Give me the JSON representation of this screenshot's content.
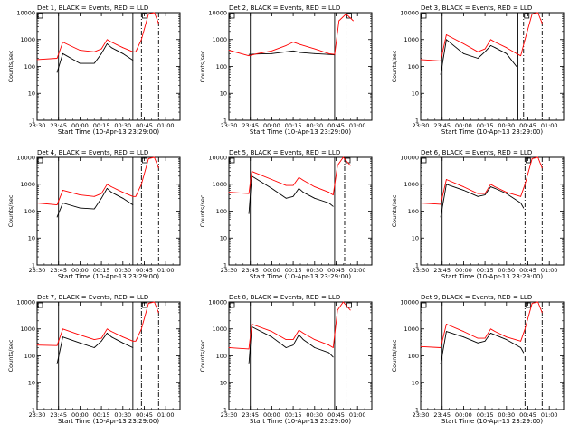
{
  "chart_data": [
    {
      "type": "line",
      "title": "Det 1, BLACK = Events, RED = LLD",
      "xlabel": "Start Time (10-Apr-13 23:29:00)",
      "ylabel": "Counts/sec",
      "yscale": "log",
      "ylim": [
        1,
        10000
      ],
      "xlim": [
        "23:30",
        "01:10"
      ],
      "xticks": [
        "23:30",
        "23:45",
        "00:00",
        "00:15",
        "00:30",
        "00:45",
        "01:00"
      ],
      "yticks": [
        "1",
        "10",
        "100",
        "1000",
        "10000"
      ],
      "vlines": {
        "solid": [
          "23:45",
          "00:37"
        ],
        "dashdot": [
          "00:43",
          "00:55"
        ]
      },
      "series": [
        {
          "color": "#000000",
          "x": [
            "23:44",
            "23:48",
            "00:00",
            "00:10",
            "00:15",
            "00:19",
            "00:22",
            "00:30",
            "00:37"
          ],
          "y": [
            60,
            300,
            130,
            130,
            300,
            700,
            500,
            300,
            170
          ]
        },
        {
          "color": "#ff0000",
          "x": [
            "23:30",
            "23:44",
            "23:48",
            "00:00",
            "00:10",
            "00:15",
            "00:19",
            "00:22",
            "00:30",
            "00:37",
            "00:39",
            "00:43",
            "00:48",
            "00:52",
            "00:55"
          ],
          "y": [
            180,
            200,
            800,
            400,
            350,
            450,
            1000,
            800,
            500,
            350,
            350,
            1000,
            9000,
            10000,
            4000
          ]
        }
      ]
    },
    {
      "type": "line",
      "title": "Det 2, BLACK = Events, RED = LLD",
      "xlabel": "Start Time (10-Apr-13 23:29:00)",
      "ylabel": "Counts/sec",
      "yscale": "log",
      "ylim": [
        1,
        10000
      ],
      "xlim": [
        "23:30",
        "01:10"
      ],
      "xticks": [
        "23:30",
        "23:45",
        "00:00",
        "00:15",
        "00:30",
        "00:45",
        "01:00"
      ],
      "yticks": [
        "1",
        "10",
        "100",
        "1000",
        "10000"
      ],
      "vlines": {
        "solid": [
          "23:45",
          "00:44"
        ],
        "dashdot": [
          "00:52"
        ]
      },
      "series": [
        {
          "color": "#000000",
          "x": [
            "23:44",
            "23:50",
            "00:00",
            "00:10",
            "00:15",
            "00:20",
            "00:30",
            "00:40",
            "00:44"
          ],
          "y": [
            280,
            290,
            300,
            350,
            380,
            330,
            300,
            280,
            270
          ]
        },
        {
          "color": "#ff0000",
          "x": [
            "23:30",
            "23:44",
            "23:50",
            "00:00",
            "00:10",
            "00:15",
            "00:20",
            "00:30",
            "00:40",
            "00:44",
            "00:47",
            "00:52",
            "00:57"
          ],
          "y": [
            400,
            250,
            300,
            380,
            600,
            800,
            650,
            450,
            300,
            280,
            5000,
            9000,
            5000
          ]
        }
      ]
    },
    {
      "type": "line",
      "title": "Det 3, BLACK = Events, RED = LLD",
      "xlabel": "Start Time (10-Apr-13 23:29:00)",
      "ylabel": "Counts/sec",
      "yscale": "log",
      "ylim": [
        1,
        10000
      ],
      "xlim": [
        "23:30",
        "01:10"
      ],
      "xticks": [
        "23:30",
        "23:45",
        "00:00",
        "00:15",
        "00:30",
        "00:45",
        "01:00"
      ],
      "yticks": [
        "1",
        "10",
        "100",
        "1000",
        "10000"
      ],
      "vlines": {
        "solid": [
          "23:45",
          "00:38"
        ],
        "dashdot": [
          "00:42",
          "00:55"
        ]
      },
      "series": [
        {
          "color": "#000000",
          "x": [
            "23:44",
            "23:48",
            "00:00",
            "00:10",
            "00:15",
            "00:19",
            "00:22",
            "00:30",
            "00:37"
          ],
          "y": [
            50,
            1000,
            300,
            200,
            350,
            600,
            500,
            300,
            100
          ]
        },
        {
          "color": "#ff0000",
          "x": [
            "23:30",
            "23:44",
            "23:48",
            "00:00",
            "00:10",
            "00:15",
            "00:19",
            "00:22",
            "00:30",
            "00:37",
            "00:40",
            "00:43",
            "00:48",
            "00:52",
            "00:55"
          ],
          "y": [
            180,
            160,
            1500,
            700,
            350,
            450,
            1000,
            800,
            500,
            300,
            250,
            1000,
            9000,
            10000,
            4000
          ]
        }
      ]
    },
    {
      "type": "line",
      "title": "Det 4, BLACK = Events, RED = LLD",
      "xlabel": "Start Time (10-Apr-13 23:29:00)",
      "ylabel": "Counts/sec",
      "yscale": "log",
      "ylim": [
        1,
        10000
      ],
      "xlim": [
        "23:30",
        "01:10"
      ],
      "xticks": [
        "23:30",
        "23:45",
        "00:00",
        "00:15",
        "00:30",
        "00:45",
        "01:00"
      ],
      "yticks": [
        "1",
        "10",
        "100",
        "1000",
        "10000"
      ],
      "vlines": {
        "solid": [
          "23:45",
          "00:37"
        ],
        "dashdot": [
          "00:43",
          "00:55"
        ]
      },
      "series": [
        {
          "color": "#000000",
          "x": [
            "23:44",
            "23:48",
            "00:00",
            "00:10",
            "00:15",
            "00:19",
            "00:22",
            "00:30",
            "00:37"
          ],
          "y": [
            60,
            200,
            130,
            120,
            300,
            700,
            500,
            300,
            170
          ]
        },
        {
          "color": "#ff0000",
          "x": [
            "23:30",
            "23:44",
            "23:48",
            "00:00",
            "00:10",
            "00:15",
            "00:19",
            "00:22",
            "00:30",
            "00:37",
            "00:39",
            "00:43",
            "00:48",
            "00:52",
            "00:55"
          ],
          "y": [
            200,
            170,
            600,
            400,
            350,
            450,
            1000,
            800,
            500,
            350,
            350,
            1000,
            9000,
            10000,
            4000
          ]
        }
      ]
    },
    {
      "type": "line",
      "title": "Det 5, BLACK = Events, RED = LLD",
      "xlabel": "Start Time (10-Apr-13 23:29:00)",
      "ylabel": "Counts/sec",
      "yscale": "log",
      "ylim": [
        1,
        10000
      ],
      "xlim": [
        "23:30",
        "01:10"
      ],
      "xticks": [
        "23:30",
        "23:45",
        "00:00",
        "00:15",
        "00:30",
        "00:45",
        "01:00"
      ],
      "yticks": [
        "1",
        "10",
        "100",
        "1000",
        "10000"
      ],
      "vlines": {
        "solid": [
          "23:45",
          "00:44"
        ],
        "dashdot": [
          "00:51"
        ]
      },
      "series": [
        {
          "color": "#000000",
          "x": [
            "23:44",
            "23:46",
            "00:00",
            "00:10",
            "00:15",
            "00:19",
            "00:22",
            "00:30",
            "00:40",
            "00:43"
          ],
          "y": [
            80,
            2000,
            700,
            300,
            350,
            700,
            500,
            300,
            200,
            150
          ]
        },
        {
          "color": "#ff0000",
          "x": [
            "23:30",
            "23:44",
            "23:46",
            "00:00",
            "00:10",
            "00:15",
            "00:19",
            "00:22",
            "00:30",
            "00:40",
            "00:43",
            "00:46",
            "00:50",
            "00:55"
          ],
          "y": [
            500,
            450,
            3000,
            1500,
            900,
            900,
            1800,
            1400,
            800,
            500,
            400,
            5000,
            10000,
            5000
          ]
        }
      ]
    },
    {
      "type": "line",
      "title": "Det 6, BLACK = Events, RED = LLD",
      "xlabel": "Start Time (10-Apr-13 23:29:00)",
      "ylabel": "Counts/sec",
      "yscale": "log",
      "ylim": [
        1,
        10000
      ],
      "xlim": [
        "23:30",
        "01:10"
      ],
      "xticks": [
        "23:30",
        "23:45",
        "00:00",
        "00:15",
        "00:30",
        "00:45",
        "01:00"
      ],
      "yticks": [
        "1",
        "10",
        "100",
        "1000",
        "10000"
      ],
      "vlines": {
        "solid": [
          "23:45"
        ],
        "dashdot": [
          "00:43",
          "00:55"
        ]
      },
      "series": [
        {
          "color": "#000000",
          "x": [
            "23:44",
            "23:48",
            "00:00",
            "00:10",
            "00:15",
            "00:19",
            "00:22",
            "00:30",
            "00:40",
            "00:42"
          ],
          "y": [
            60,
            1000,
            600,
            350,
            400,
            800,
            700,
            450,
            200,
            130
          ]
        },
        {
          "color": "#ff0000",
          "x": [
            "23:30",
            "23:44",
            "23:48",
            "00:00",
            "00:10",
            "00:15",
            "00:19",
            "00:22",
            "00:30",
            "00:40",
            "00:43",
            "00:48",
            "00:52",
            "00:55"
          ],
          "y": [
            200,
            180,
            1500,
            800,
            450,
            450,
            1000,
            800,
            500,
            350,
            1000,
            9000,
            10000,
            4000
          ]
        }
      ]
    },
    {
      "type": "line",
      "title": "Det 7, BLACK = Events, RED = LLD",
      "xlabel": "Start Time (10-Apr-13 23:29:00)",
      "ylabel": "Counts/sec",
      "yscale": "log",
      "ylim": [
        1,
        10000
      ],
      "xlim": [
        "23:30",
        "01:10"
      ],
      "xticks": [
        "23:30",
        "23:45",
        "00:00",
        "00:15",
        "00:30",
        "00:45",
        "01:00"
      ],
      "yticks": [
        "1",
        "10",
        "100",
        "1000",
        "10000"
      ],
      "vlines": {
        "solid": [
          "23:45",
          "00:37"
        ],
        "dashdot": [
          "00:43",
          "00:55"
        ]
      },
      "series": [
        {
          "color": "#000000",
          "x": [
            "23:44",
            "23:48",
            "00:00",
            "00:10",
            "00:15",
            "00:19",
            "00:22",
            "00:30",
            "00:37"
          ],
          "y": [
            50,
            500,
            300,
            200,
            350,
            700,
            500,
            300,
            200
          ]
        },
        {
          "color": "#ff0000",
          "x": [
            "23:30",
            "23:44",
            "23:48",
            "00:00",
            "00:10",
            "00:15",
            "00:19",
            "00:22",
            "00:30",
            "00:37",
            "00:39",
            "00:43",
            "00:48",
            "00:52",
            "00:55"
          ],
          "y": [
            250,
            240,
            1000,
            600,
            400,
            450,
            1000,
            800,
            500,
            350,
            350,
            1000,
            9000,
            10000,
            4000
          ]
        }
      ]
    },
    {
      "type": "line",
      "title": "Det 8, BLACK = Events, RED = LLD",
      "xlabel": "Start Time (10-Apr-13 23:29:00)",
      "ylabel": "Counts/sec",
      "yscale": "log",
      "ylim": [
        1,
        10000
      ],
      "xlim": [
        "23:30",
        "01:10"
      ],
      "xticks": [
        "23:30",
        "23:45",
        "00:00",
        "00:15",
        "00:30",
        "00:45",
        "01:00"
      ],
      "yticks": [
        "1",
        "10",
        "100",
        "1000",
        "10000"
      ],
      "vlines": {
        "solid": [
          "23:45",
          "00:44"
        ],
        "dashdot": [
          "00:52"
        ]
      },
      "series": [
        {
          "color": "#000000",
          "x": [
            "23:44",
            "23:46",
            "00:00",
            "00:10",
            "00:15",
            "00:19",
            "00:22",
            "00:30",
            "00:40",
            "00:43"
          ],
          "y": [
            50,
            1200,
            500,
            200,
            250,
            600,
            400,
            200,
            130,
            90
          ]
        },
        {
          "color": "#ff0000",
          "x": [
            "23:30",
            "23:44",
            "23:46",
            "00:00",
            "00:10",
            "00:15",
            "00:19",
            "00:22",
            "00:30",
            "00:40",
            "00:43",
            "00:46",
            "00:50",
            "00:55"
          ],
          "y": [
            200,
            180,
            1500,
            800,
            400,
            400,
            900,
            700,
            400,
            250,
            200,
            5000,
            10000,
            5000
          ]
        }
      ]
    },
    {
      "type": "line",
      "title": "Det 9, BLACK = Events, RED = LLD",
      "xlabel": "Start Time (10-Apr-13 23:29:00)",
      "ylabel": "Counts/sec",
      "yscale": "log",
      "ylim": [
        1,
        10000
      ],
      "xlim": [
        "23:30",
        "01:10"
      ],
      "xticks": [
        "23:30",
        "23:45",
        "00:00",
        "00:15",
        "00:30",
        "00:45",
        "01:00"
      ],
      "yticks": [
        "1",
        "10",
        "100",
        "1000",
        "10000"
      ],
      "vlines": {
        "solid": [
          "23:45"
        ],
        "dashdot": [
          "00:43",
          "00:55"
        ]
      },
      "series": [
        {
          "color": "#000000",
          "x": [
            "23:44",
            "23:48",
            "00:00",
            "00:10",
            "00:15",
            "00:19",
            "00:22",
            "00:30",
            "00:40",
            "00:42"
          ],
          "y": [
            50,
            800,
            500,
            300,
            350,
            700,
            600,
            400,
            200,
            130
          ]
        },
        {
          "color": "#ff0000",
          "x": [
            "23:30",
            "23:44",
            "23:48",
            "00:00",
            "00:10",
            "00:15",
            "00:19",
            "00:22",
            "00:30",
            "00:40",
            "00:43",
            "00:48",
            "00:52",
            "00:55"
          ],
          "y": [
            220,
            200,
            1500,
            800,
            450,
            450,
            1000,
            800,
            500,
            350,
            1000,
            9000,
            10000,
            4000
          ]
        }
      ]
    }
  ]
}
